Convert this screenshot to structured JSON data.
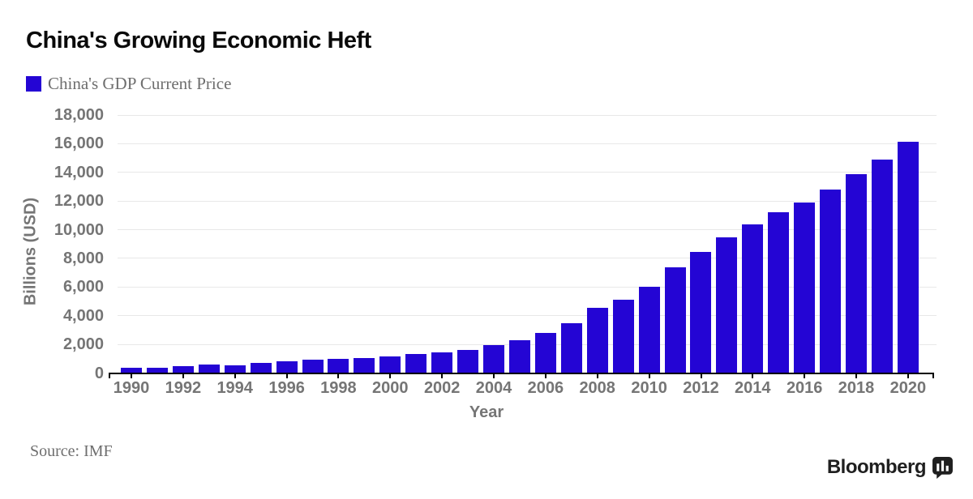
{
  "header": {
    "title": "China's Growing Economic Heft"
  },
  "legend": {
    "label": "China's GDP Current Price",
    "swatch_color": "#2405d4"
  },
  "chart_data": {
    "type": "bar",
    "title": "China's Growing Economic Heft",
    "series_name": "China's GDP Current Price",
    "xlabel": "Year",
    "ylabel": "Billions (USD)",
    "categories": [
      1990,
      1991,
      1992,
      1993,
      1994,
      1995,
      1996,
      1997,
      1998,
      1999,
      2000,
      2001,
      2002,
      2003,
      2004,
      2005,
      2006,
      2007,
      2008,
      2009,
      2010,
      2011,
      2012,
      2013,
      2014,
      2015,
      2016,
      2017,
      2018,
      2019,
      2020
    ],
    "values": [
      390,
      415,
      490,
      615,
      560,
      735,
      865,
      960,
      1030,
      1095,
      1210,
      1340,
      1470,
      1660,
      1955,
      2300,
      2800,
      3500,
      4600,
      5150,
      6050,
      7400,
      8450,
      9500,
      10400,
      11250,
      11950,
      12850,
      13900,
      14900,
      16150
    ],
    "ylim": [
      0,
      18000
    ],
    "ytick_step": 2000,
    "ytick_labels": [
      "0",
      "2,000",
      "4,000",
      "6,000",
      "8,000",
      "10,000",
      "12,000",
      "14,000",
      "16,000",
      "18,000"
    ],
    "xtick_labels": [
      "1990",
      "1992",
      "1994",
      "1996",
      "1998",
      "2000",
      "2002",
      "2004",
      "2006",
      "2008",
      "2010",
      "2012",
      "2014",
      "2016",
      "2018",
      "2020"
    ],
    "grid": "horizontal",
    "legend_position": "top-left",
    "bar_color": "#2405d4"
  },
  "footer": {
    "source": "Source: IMF",
    "brand": "Bloomberg",
    "brand_icon": "bar-chart-speech-bubble-icon"
  },
  "colors": {
    "bar": "#2405d4",
    "grid": "#e8e8e8",
    "axis": "#000000",
    "tick_text": "#757575",
    "title_text": "#0a0a0a",
    "muted_text": "#6e6e6e",
    "brand_text": "#1f1f1f",
    "background": "#ffffff"
  }
}
